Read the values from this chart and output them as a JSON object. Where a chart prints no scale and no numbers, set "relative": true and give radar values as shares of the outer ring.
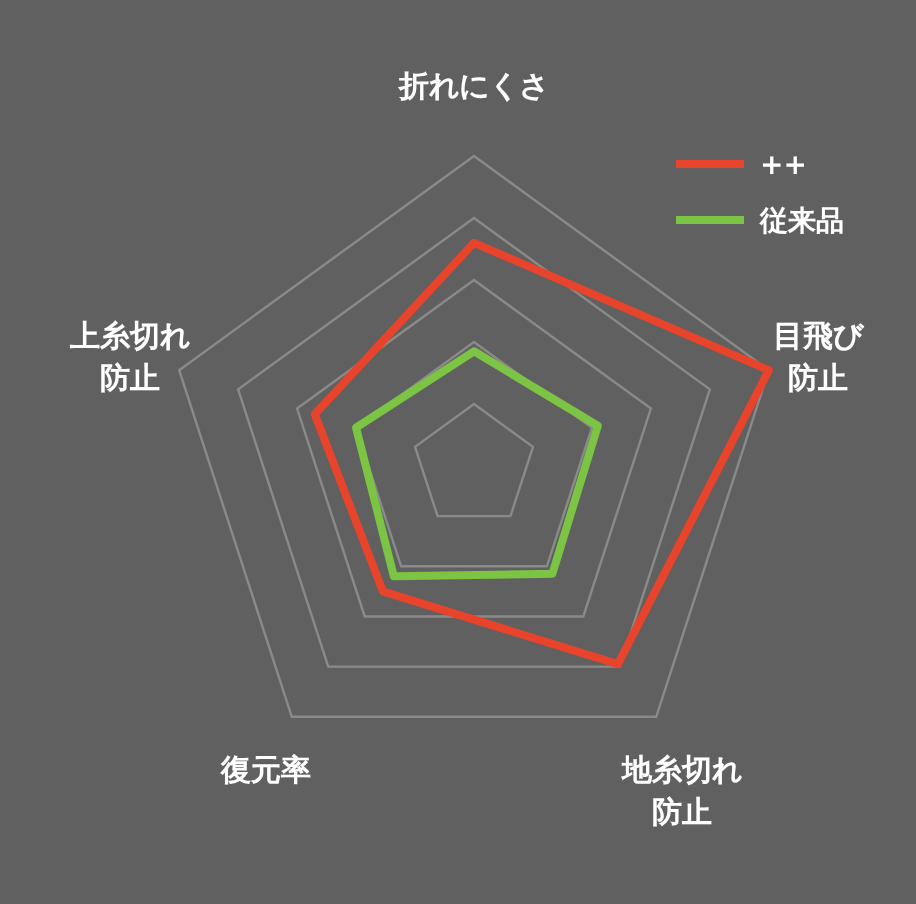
{
  "chart_data": {
    "type": "radar",
    "relative": true,
    "categories": [
      "折れにくさ",
      "目飛び防止",
      "地糸切れ防止",
      "復元率",
      "上糸切れ防止"
    ],
    "series": [
      {
        "name": "++",
        "color": "#e8432b",
        "values": [
          0.72,
          1.0,
          0.79,
          0.5,
          0.54
        ]
      },
      {
        "name": "従来品",
        "color": "#7cc443",
        "values": [
          0.37,
          0.42,
          0.43,
          0.44,
          0.4
        ]
      }
    ],
    "legend": "top right",
    "grid": true
  }
}
